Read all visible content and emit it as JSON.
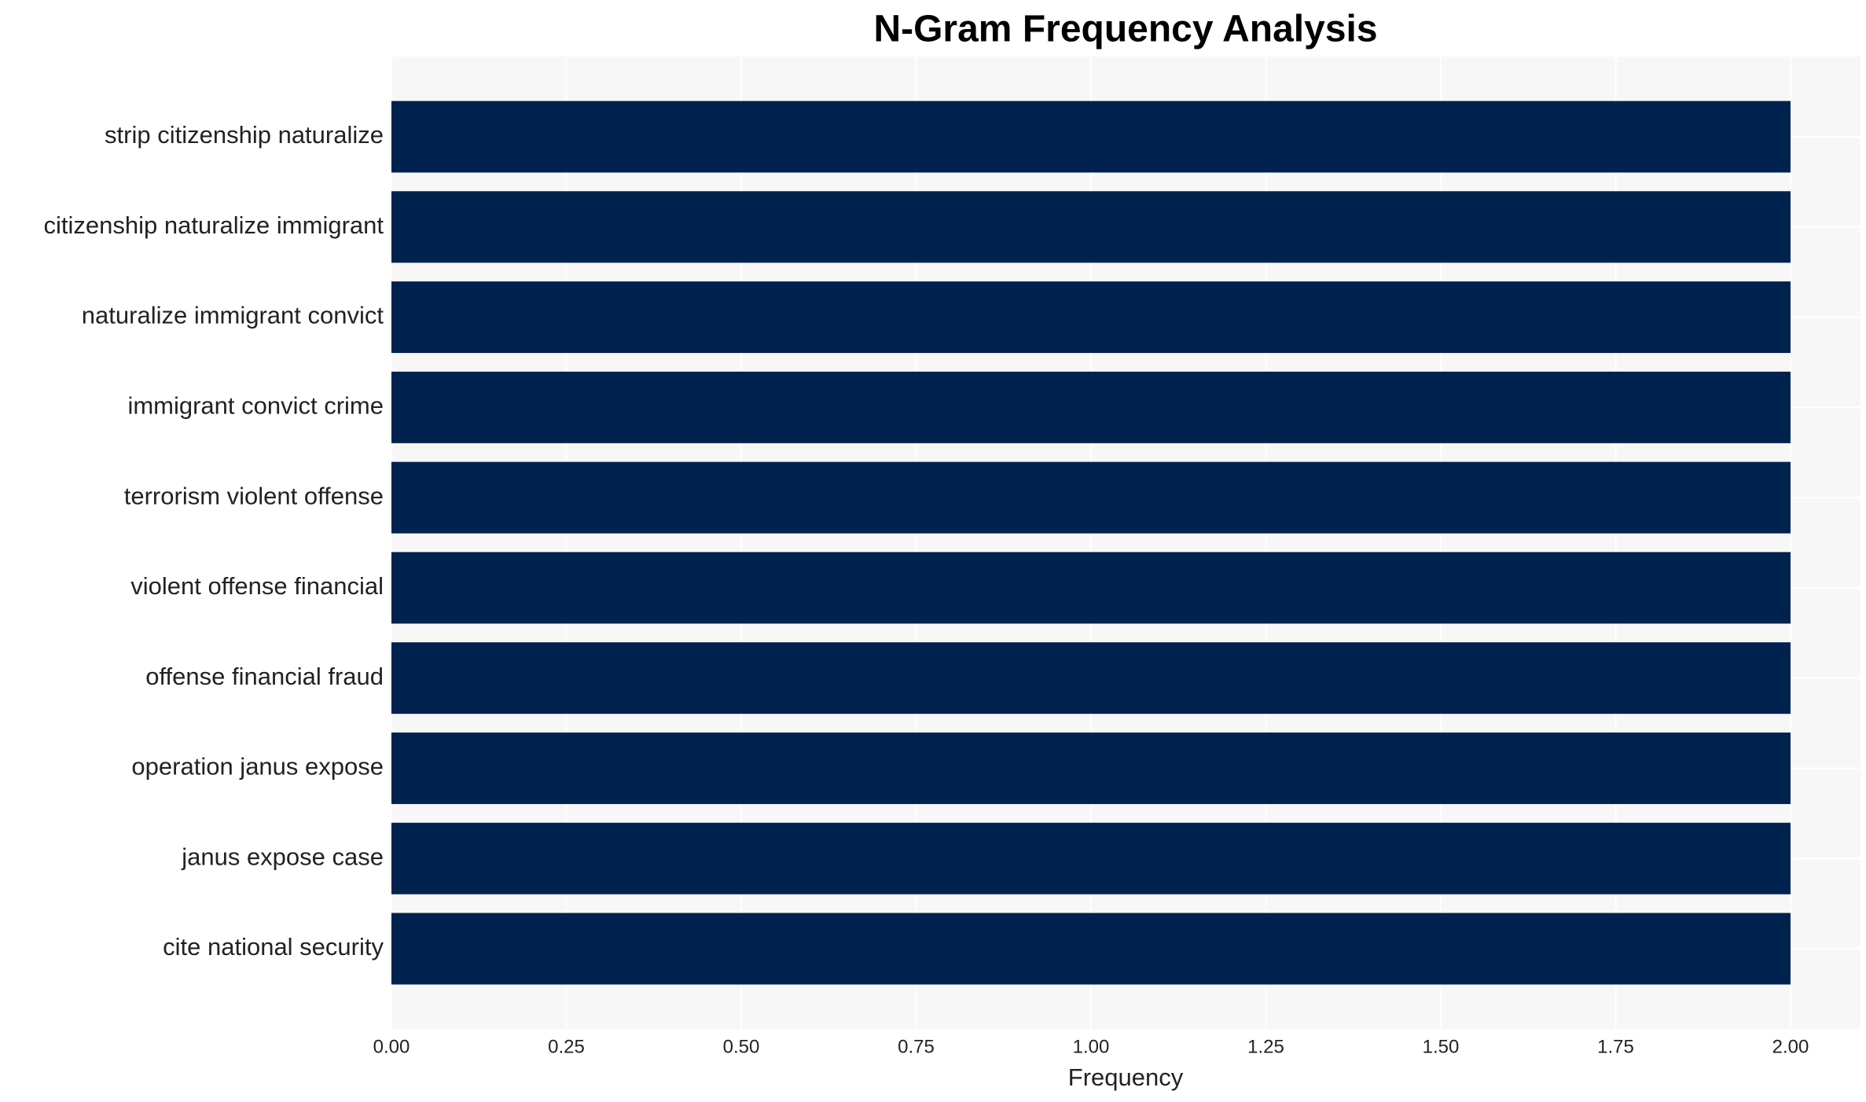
{
  "chart_data": {
    "type": "barh",
    "title": "N-Gram Frequency Analysis",
    "x_label": "Frequency",
    "categories": [
      "strip citizenship naturalize",
      "citizenship naturalize immigrant",
      "naturalize immigrant convict",
      "immigrant convict crime",
      "terrorism violent offense",
      "violent offense financial",
      "offense financial fraud",
      "operation janus expose",
      "janus expose case",
      "cite national security"
    ],
    "values": [
      2,
      2,
      2,
      2,
      2,
      2,
      2,
      2,
      2,
      2
    ],
    "color": "#00224e",
    "xlim": [
      0,
      2.1
    ],
    "xticks": [
      {
        "value": 0,
        "label": "0.00"
      },
      {
        "value": 0.25,
        "label": "0.25"
      },
      {
        "value": 0.5,
        "label": "0.50"
      },
      {
        "value": 0.75,
        "label": "0.75"
      },
      {
        "value": 1,
        "label": "1.00"
      },
      {
        "value": 1.25,
        "label": "1.25"
      },
      {
        "value": 1.5,
        "label": "1.50"
      },
      {
        "value": 1.75,
        "label": "1.75"
      },
      {
        "value": 2,
        "label": "2.00"
      }
    ],
    "grid": true
  }
}
